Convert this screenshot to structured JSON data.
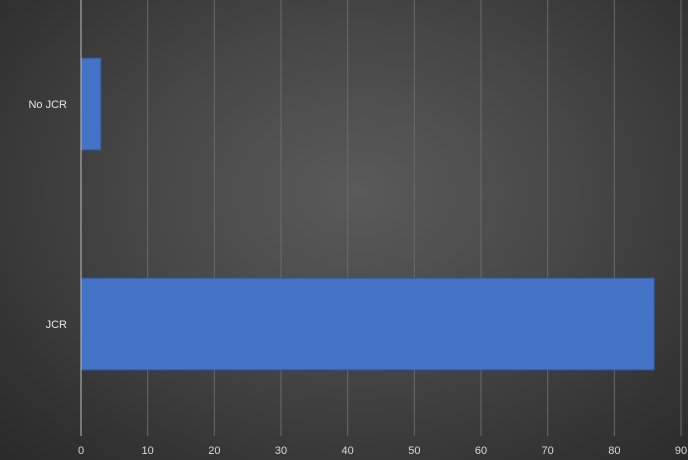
{
  "chart_data": {
    "type": "bar",
    "orientation": "horizontal",
    "categories": [
      "No JCR",
      "JCR"
    ],
    "values": [
      3,
      86
    ],
    "xlim": [
      0,
      90
    ],
    "x_ticks": [
      0,
      10,
      20,
      30,
      40,
      50,
      60,
      70,
      80,
      90
    ],
    "title": "",
    "xlabel": "",
    "ylabel": "",
    "grid": "vertical",
    "legend": "none",
    "colors": {
      "bar": "#4472C4",
      "gridline": "#6a6a6a",
      "axis": "#bfbfbf",
      "label": "#d9d9d9"
    }
  }
}
